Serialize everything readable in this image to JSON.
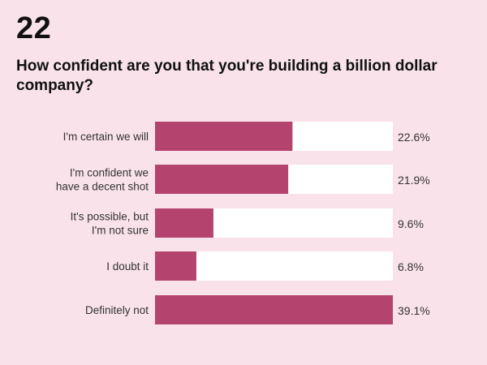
{
  "question_number": "22",
  "chart_data": {
    "type": "bar",
    "orientation": "horizontal",
    "title": "How confident are you that you're building a billion dollar company?",
    "categories": [
      [
        "I'm certain we will"
      ],
      [
        "I'm confident we",
        "have a decent shot"
      ],
      [
        "It's possible, but",
        "I'm not sure"
      ],
      [
        "I doubt it"
      ],
      [
        "Definitely not"
      ]
    ],
    "values": [
      22.6,
      21.9,
      9.6,
      6.8,
      39.1
    ],
    "value_labels": [
      "22.6%",
      "21.9%",
      "9.6%",
      "6.8%",
      "39.1%"
    ],
    "xlim": [
      0,
      39.1
    ],
    "grid": false,
    "colors": {
      "bar": "#b4446e",
      "track": "#ffffff",
      "background": "#f9e2ea"
    }
  }
}
